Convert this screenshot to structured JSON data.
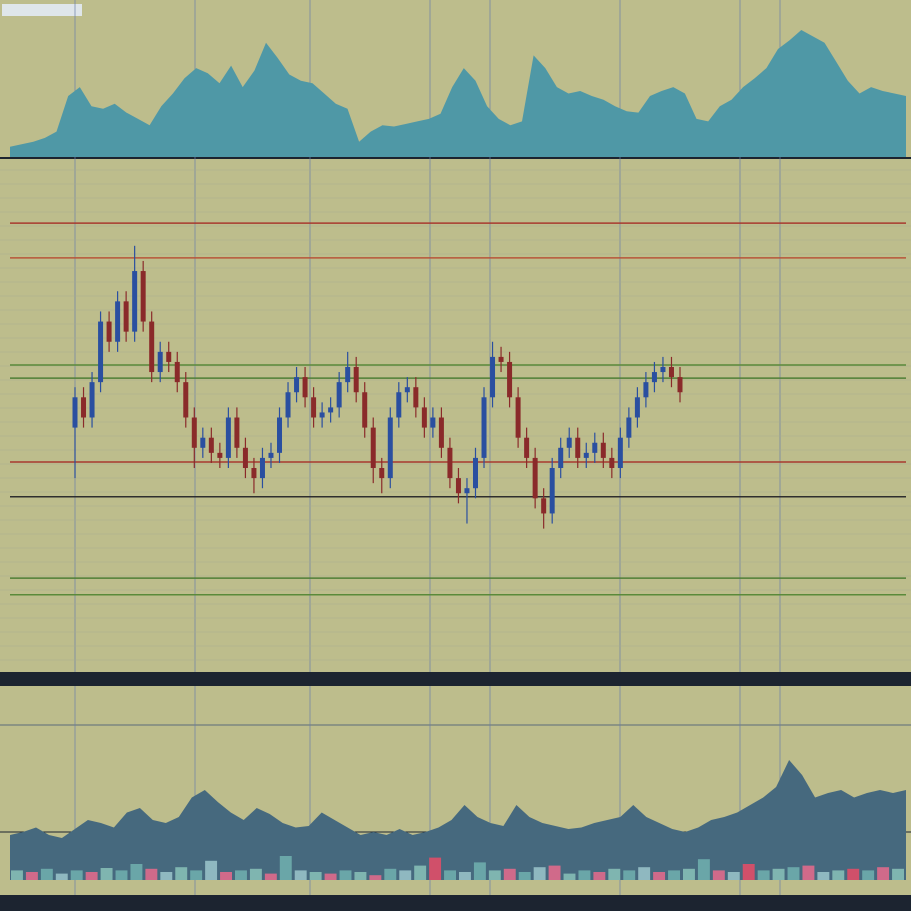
{
  "chart_data": [
    {
      "type": "area",
      "color": "#4f98a6",
      "ylim": [
        0,
        100
      ],
      "values": [
        8,
        10,
        12,
        15,
        20,
        48,
        55,
        40,
        38,
        42,
        35,
        30,
        25,
        40,
        50,
        62,
        70,
        66,
        58,
        72,
        55,
        68,
        90,
        78,
        65,
        60,
        58,
        50,
        42,
        38,
        12,
        20,
        25,
        24,
        26,
        28,
        30,
        34,
        55,
        70,
        60,
        40,
        30,
        25,
        28,
        80,
        70,
        55,
        50,
        52,
        48,
        45,
        40,
        36,
        35,
        48,
        52,
        55,
        50,
        30,
        28,
        40,
        45,
        55,
        62,
        70,
        85,
        92,
        100,
        95,
        90,
        75,
        60,
        50,
        55,
        52,
        50,
        48
      ],
      "panel": "top"
    },
    {
      "type": "candlestick",
      "ylim": [
        0,
        100
      ],
      "up_color": "#2a4fa0",
      "down_color": "#8a2a2a",
      "open": [
        48,
        54,
        50,
        57,
        69,
        65,
        73,
        67,
        79,
        69,
        59,
        63,
        61,
        57,
        50,
        44,
        46,
        43,
        42,
        50,
        44,
        40,
        38,
        42,
        43,
        50,
        55,
        58,
        54,
        50,
        51,
        52,
        57,
        60,
        55,
        48,
        40,
        38,
        50,
        55,
        56,
        52,
        48,
        50,
        44,
        38,
        35,
        36,
        42,
        54,
        62,
        61,
        54,
        46,
        42,
        34,
        31,
        40,
        44,
        46,
        42,
        43,
        45,
        42,
        40,
        46,
        50,
        54,
        57,
        59,
        60,
        58
      ],
      "high": [
        56,
        56,
        59,
        71,
        71,
        75,
        75,
        84,
        81,
        71,
        65,
        65,
        63,
        59,
        52,
        48,
        48,
        45,
        52,
        52,
        46,
        42,
        44,
        45,
        52,
        57,
        60,
        60,
        56,
        53,
        54,
        59,
        63,
        62,
        57,
        50,
        42,
        52,
        57,
        58,
        58,
        54,
        52,
        52,
        46,
        40,
        38,
        44,
        56,
        65,
        64,
        63,
        56,
        48,
        44,
        36,
        42,
        46,
        48,
        48,
        45,
        47,
        47,
        44,
        48,
        52,
        56,
        59,
        61,
        62,
        62,
        60
      ],
      "low": [
        38,
        48,
        48,
        55,
        63,
        63,
        65,
        65,
        67,
        57,
        57,
        59,
        55,
        48,
        40,
        42,
        41,
        40,
        40,
        42,
        38,
        35,
        36,
        40,
        41,
        48,
        53,
        52,
        48,
        48,
        49,
        50,
        55,
        53,
        46,
        37,
        35,
        36,
        48,
        53,
        50,
        46,
        46,
        42,
        36,
        33,
        29,
        34,
        40,
        52,
        59,
        52,
        44,
        40,
        32,
        28,
        29,
        38,
        42,
        40,
        40,
        41,
        40,
        38,
        38,
        44,
        48,
        52,
        55,
        57,
        56,
        53
      ],
      "close": [
        54,
        50,
        57,
        69,
        65,
        73,
        67,
        79,
        69,
        59,
        63,
        61,
        57,
        50,
        44,
        46,
        43,
        42,
        50,
        44,
        40,
        38,
        42,
        43,
        50,
        55,
        58,
        54,
        50,
        51,
        52,
        57,
        60,
        55,
        48,
        40,
        38,
        50,
        55,
        56,
        52,
        48,
        50,
        44,
        38,
        35,
        36,
        42,
        54,
        62,
        61,
        54,
        46,
        42,
        34,
        31,
        40,
        44,
        46,
        42,
        43,
        45,
        42,
        40,
        46,
        50,
        54,
        57,
        59,
        60,
        58,
        55
      ],
      "levels": [
        {
          "value": 88.5,
          "color": "#a83a2e"
        },
        {
          "value": 81.6,
          "color": "#b8553a"
        },
        {
          "value": 60.4,
          "color": "#5a8a3a"
        },
        {
          "value": 57.8,
          "color": "#4f7f35"
        },
        {
          "value": 41.2,
          "color": "#a83a2e"
        },
        {
          "value": 34.3,
          "color": "#2e2e2e"
        },
        {
          "value": 18.2,
          "color": "#4f7f35"
        },
        {
          "value": 14.9,
          "color": "#5a8a3a"
        }
      ],
      "panel": "main"
    },
    {
      "type": "area",
      "color": "#46697e",
      "ylim": [
        0,
        100
      ],
      "values": [
        30,
        32,
        35,
        30,
        28,
        34,
        40,
        38,
        35,
        45,
        48,
        40,
        38,
        42,
        55,
        60,
        52,
        45,
        40,
        48,
        44,
        38,
        35,
        36,
        45,
        40,
        35,
        30,
        32,
        30,
        34,
        30,
        32,
        35,
        40,
        50,
        42,
        38,
        36,
        50,
        42,
        38,
        36,
        34,
        35,
        38,
        40,
        42,
        50,
        42,
        38,
        34,
        32,
        35,
        40,
        42,
        45,
        50,
        55,
        62,
        80,
        70,
        55,
        58,
        60,
        55,
        58,
        60,
        58,
        60
      ],
      "panel": "bottom"
    },
    {
      "type": "bar",
      "ylim": [
        0,
        100
      ],
      "values": [
        12,
        10,
        14,
        8,
        12,
        10,
        15,
        12,
        20,
        14,
        10,
        16,
        12,
        24,
        10,
        12,
        14,
        8,
        30,
        12,
        10,
        8,
        12,
        10,
        6,
        14,
        12,
        18,
        28,
        12,
        10,
        22,
        12,
        14,
        10,
        16,
        18,
        8,
        12,
        10,
        14,
        12,
        16,
        10,
        12,
        14,
        26,
        12,
        10,
        20,
        12,
        14,
        16,
        18,
        10,
        12,
        14,
        12,
        16,
        14
      ],
      "colors": [
        "#7fb5b0",
        "#d06a8a",
        "#6aa6a8",
        "#8fb8c0",
        "#6aa6a8",
        "#d06a8a",
        "#7fb5b0",
        "#6aa6a8",
        "#6aa6a8",
        "#d06a8a",
        "#8fb8c0",
        "#7fb5b0",
        "#6aa6a8",
        "#8fb8c0",
        "#d06a8a",
        "#6aa6a8",
        "#7fb5b0",
        "#d06a8a",
        "#6aa6a8",
        "#8fb8c0",
        "#7fb5b0",
        "#d06a8a",
        "#6aa6a8",
        "#7fb5b0",
        "#d06a8a",
        "#6aa6a8",
        "#8fb8c0",
        "#7fb5b0",
        "#d0506a",
        "#6aa6a8",
        "#8fb8c0",
        "#6aa6a8",
        "#7fb5b0",
        "#d06a8a",
        "#6aa6a8",
        "#8fb8c0",
        "#d06a8a",
        "#7fb5b0",
        "#6aa6a8",
        "#d06a8a",
        "#7fb5b0",
        "#6aa6a8",
        "#8fb8c0",
        "#d06a8a",
        "#6aa6a8",
        "#7fb5b0",
        "#6aa6a8",
        "#d06a8a",
        "#8fb8c0",
        "#d0506a",
        "#6aa6a8",
        "#7fb5b0",
        "#6aa6a8",
        "#d06a8a",
        "#8fb8c0",
        "#7fb5b0",
        "#d0506a",
        "#6aa6a8",
        "#d06a8a",
        "#7fb5b0"
      ],
      "panel": "volume"
    }
  ]
}
